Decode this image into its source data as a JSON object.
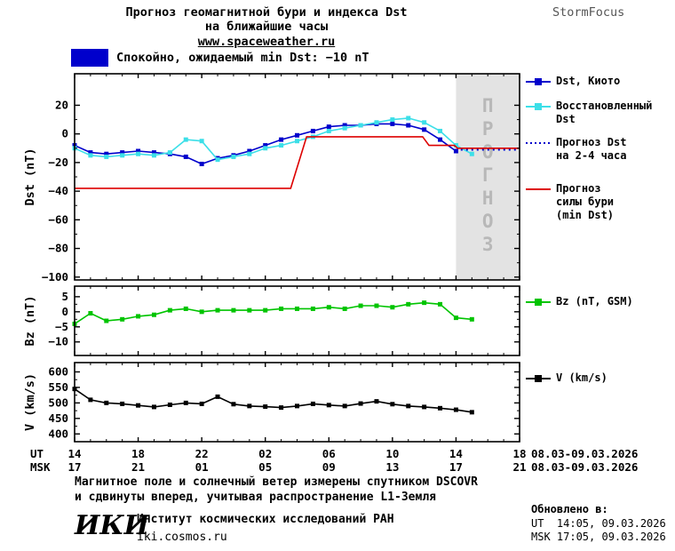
{
  "header": {
    "title_line1": "Прогноз геомагнитной бури и индекса Dst",
    "title_line2": "на ближайшие часы",
    "site_link": "www.spaceweather.ru",
    "brand": "StormFocus"
  },
  "status_banner": {
    "label": "Спокойно, ожидаемый min Dst: −10 nT",
    "color": "#0000cc"
  },
  "chart_data": {
    "type": "line",
    "xaxis": {
      "xlim": [
        0,
        28
      ],
      "major_ticks": [
        0,
        4,
        8,
        12,
        16,
        20,
        24,
        28
      ],
      "ut_prefix": "UT",
      "msk_prefix": "MSK",
      "ut_labels": [
        "14",
        "18",
        "22",
        "02",
        "06",
        "10",
        "14",
        "18"
      ],
      "msk_labels": [
        "17",
        "21",
        "01",
        "05",
        "09",
        "13",
        "17",
        "21"
      ],
      "ut_date_range": "08.03-09.03.2026",
      "msk_date_range": "08.03-09.03.2026"
    },
    "panels": [
      {
        "id": "dst",
        "ylabel": "Dst (nT)",
        "ylim": [
          -102,
          42
        ],
        "yticks": [
          20,
          0,
          -20,
          -40,
          -60,
          -80,
          -100
        ],
        "forecast_region": {
          "x0": 24,
          "x1": 28,
          "label": "ПРОГНОЗ",
          "fill": "#e3e3e3",
          "text_color": "#b8b8b8"
        },
        "series": [
          {
            "name": "Dst, Киото",
            "color": "#0000cc",
            "style": "line-squares",
            "x": [
              0,
              1,
              2,
              3,
              4,
              5,
              6,
              7,
              8,
              9,
              10,
              11,
              12,
              13,
              14,
              15,
              16,
              17,
              18,
              19,
              20,
              21,
              22,
              23,
              24
            ],
            "y": [
              -8,
              -13,
              -14,
              -13,
              -12,
              -13,
              -14,
              -16,
              -21,
              -17,
              -15,
              -12,
              -8,
              -4,
              -1,
              2,
              5,
              6,
              6,
              7,
              7,
              6,
              3,
              -4,
              -12
            ]
          },
          {
            "name": "Восстановленный Dst",
            "color": "#3cdfe8",
            "style": "line-squares",
            "x": [
              0,
              1,
              2,
              3,
              4,
              5,
              6,
              7,
              8,
              9,
              10,
              11,
              12,
              13,
              14,
              15,
              16,
              17,
              18,
              19,
              20,
              21,
              22,
              23,
              24,
              25
            ],
            "y": [
              -10,
              -15,
              -16,
              -15,
              -14,
              -15,
              -13,
              -4,
              -5,
              -18,
              -16,
              -14,
              -10,
              -8,
              -5,
              -2,
              2,
              4,
              6,
              8,
              10,
              11,
              8,
              2,
              -8,
              -14
            ]
          },
          {
            "name": "Прогноз Dst на 2-4 часа",
            "color": "#0000cc",
            "style": "dotted",
            "x": [
              24.3,
              28
            ],
            "y": [
              -11,
              -11
            ]
          },
          {
            "name": "Прогноз силы бури (min Dst)",
            "color": "#dd0000",
            "style": "line",
            "x": [
              0,
              13.6,
              14.6,
              21.9,
              22.3,
              23.9,
              24.1,
              28
            ],
            "y": [
              -38,
              -38,
              -2,
              -2,
              -8,
              -8,
              -10,
              -10
            ]
          }
        ]
      },
      {
        "id": "bz",
        "ylabel": "Bz (nT)",
        "ylim": [
          -14.5,
          8.5
        ],
        "yticks": [
          5,
          0,
          -5,
          -10
        ],
        "series": [
          {
            "name": "Bz (nT, GSM)",
            "color": "#00c400",
            "style": "line-squares",
            "x": [
              0,
              1,
              2,
              3,
              4,
              5,
              6,
              7,
              8,
              9,
              10,
              11,
              12,
              13,
              14,
              15,
              16,
              17,
              18,
              19,
              20,
              21,
              22,
              23,
              24,
              25
            ],
            "y": [
              -4,
              -0.5,
              -3,
              -2.5,
              -1.5,
              -1,
              0.5,
              1,
              0,
              0.5,
              0.5,
              0.5,
              0.5,
              1,
              1,
              1,
              1.5,
              1,
              2,
              2,
              1.5,
              2.5,
              3,
              2.5,
              -2,
              -2.5
            ]
          }
        ]
      },
      {
        "id": "v",
        "ylabel": "V (km/s)",
        "ylim": [
          375,
          630
        ],
        "yticks": [
          600,
          550,
          500,
          450,
          400
        ],
        "series": [
          {
            "name": "V (km/s)",
            "color": "#000000",
            "style": "line-squares",
            "x": [
              0,
              1,
              2,
              3,
              4,
              5,
              6,
              7,
              8,
              9,
              10,
              11,
              12,
              13,
              14,
              15,
              16,
              17,
              18,
              19,
              20,
              21,
              22,
              23,
              24,
              25
            ],
            "y": [
              545,
              510,
              500,
              497,
              492,
              487,
              494,
              500,
              497,
              520,
              496,
              490,
              488,
              485,
              490,
              497,
              493,
              490,
              498,
              505,
              496,
              490,
              487,
              483,
              478,
              470
            ]
          }
        ]
      }
    ],
    "legend": [
      {
        "lines": [
          "Dst, Киото"
        ],
        "color": "#0000cc",
        "style": "line-squares"
      },
      {
        "lines": [
          "Восстановленный",
          "Dst"
        ],
        "color": "#3cdfe8",
        "style": "line-squares"
      },
      {
        "lines": [
          "Прогноз Dst",
          "на 2-4 часа"
        ],
        "color": "#0000cc",
        "style": "dotted"
      },
      {
        "lines": [
          "Прогноз",
          "силы бури",
          "(min Dst)"
        ],
        "color": "#dd0000",
        "style": "line"
      },
      {
        "lines": [
          "Bz (nT, GSM)"
        ],
        "color": "#00c400",
        "style": "line-squares"
      },
      {
        "lines": [
          "V (km/s)"
        ],
        "color": "#000000",
        "style": "line-squares"
      }
    ]
  },
  "footer": {
    "note_line1": "Магнитное поле и солнечный ветер измерены спутником DSCOVR",
    "note_line2": "и сдвинуты вперед, учитывая распространение L1-Земля",
    "org_logo": "ИКИ",
    "org_name": "Институт космических исследований РАН",
    "org_site": "iki.cosmos.ru",
    "updated_heading": "Обновлено в:",
    "updated_ut": "UT  14:05, 09.03.2026",
    "updated_msk": "MSK 17:05, 09.03.2026"
  }
}
